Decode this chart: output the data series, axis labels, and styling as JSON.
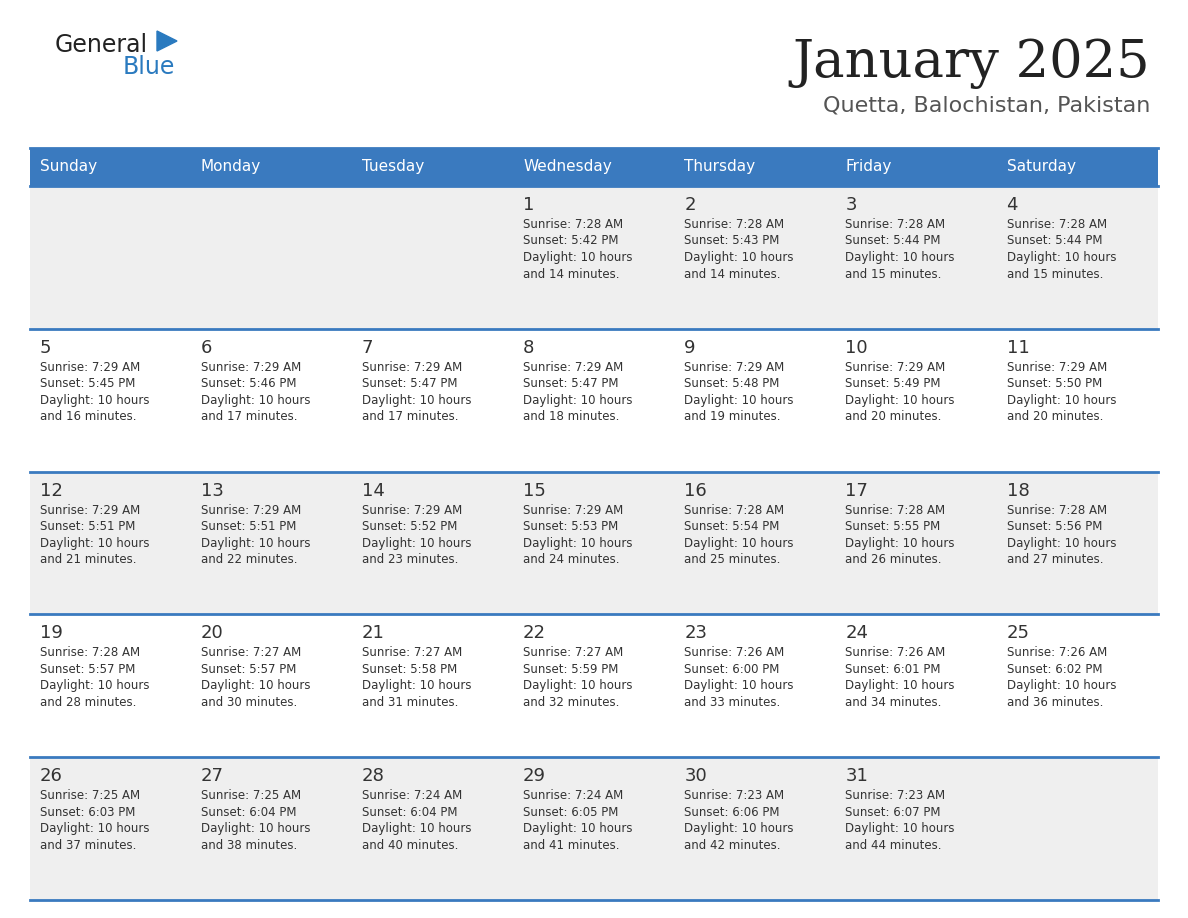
{
  "title": "January 2025",
  "subtitle": "Quetta, Balochistan, Pakistan",
  "days_of_week": [
    "Sunday",
    "Monday",
    "Tuesday",
    "Wednesday",
    "Thursday",
    "Friday",
    "Saturday"
  ],
  "header_bg": "#3a7abf",
  "header_text": "#ffffff",
  "row_bg_odd": "#efefef",
  "row_bg_even": "#ffffff",
  "cell_border": "#3a7abf",
  "title_color": "#222222",
  "subtitle_color": "#555555",
  "day_num_color": "#333333",
  "cell_text_color": "#333333",
  "logo_general_color": "#222222",
  "logo_blue_color": "#2a7abf",
  "fig_width": 11.88,
  "fig_height": 9.18,
  "dpi": 100,
  "calendar_data": [
    [
      null,
      null,
      null,
      {
        "day": 1,
        "sunrise": "7:28 AM",
        "sunset": "5:42 PM",
        "daylight": "10 hours and 14 minutes."
      },
      {
        "day": 2,
        "sunrise": "7:28 AM",
        "sunset": "5:43 PM",
        "daylight": "10 hours and 14 minutes."
      },
      {
        "day": 3,
        "sunrise": "7:28 AM",
        "sunset": "5:44 PM",
        "daylight": "10 hours and 15 minutes."
      },
      {
        "day": 4,
        "sunrise": "7:28 AM",
        "sunset": "5:44 PM",
        "daylight": "10 hours and 15 minutes."
      }
    ],
    [
      {
        "day": 5,
        "sunrise": "7:29 AM",
        "sunset": "5:45 PM",
        "daylight": "10 hours and 16 minutes."
      },
      {
        "day": 6,
        "sunrise": "7:29 AM",
        "sunset": "5:46 PM",
        "daylight": "10 hours and 17 minutes."
      },
      {
        "day": 7,
        "sunrise": "7:29 AM",
        "sunset": "5:47 PM",
        "daylight": "10 hours and 17 minutes."
      },
      {
        "day": 8,
        "sunrise": "7:29 AM",
        "sunset": "5:47 PM",
        "daylight": "10 hours and 18 minutes."
      },
      {
        "day": 9,
        "sunrise": "7:29 AM",
        "sunset": "5:48 PM",
        "daylight": "10 hours and 19 minutes."
      },
      {
        "day": 10,
        "sunrise": "7:29 AM",
        "sunset": "5:49 PM",
        "daylight": "10 hours and 20 minutes."
      },
      {
        "day": 11,
        "sunrise": "7:29 AM",
        "sunset": "5:50 PM",
        "daylight": "10 hours and 20 minutes."
      }
    ],
    [
      {
        "day": 12,
        "sunrise": "7:29 AM",
        "sunset": "5:51 PM",
        "daylight": "10 hours and 21 minutes."
      },
      {
        "day": 13,
        "sunrise": "7:29 AM",
        "sunset": "5:51 PM",
        "daylight": "10 hours and 22 minutes."
      },
      {
        "day": 14,
        "sunrise": "7:29 AM",
        "sunset": "5:52 PM",
        "daylight": "10 hours and 23 minutes."
      },
      {
        "day": 15,
        "sunrise": "7:29 AM",
        "sunset": "5:53 PM",
        "daylight": "10 hours and 24 minutes."
      },
      {
        "day": 16,
        "sunrise": "7:28 AM",
        "sunset": "5:54 PM",
        "daylight": "10 hours and 25 minutes."
      },
      {
        "day": 17,
        "sunrise": "7:28 AM",
        "sunset": "5:55 PM",
        "daylight": "10 hours and 26 minutes."
      },
      {
        "day": 18,
        "sunrise": "7:28 AM",
        "sunset": "5:56 PM",
        "daylight": "10 hours and 27 minutes."
      }
    ],
    [
      {
        "day": 19,
        "sunrise": "7:28 AM",
        "sunset": "5:57 PM",
        "daylight": "10 hours and 28 minutes."
      },
      {
        "day": 20,
        "sunrise": "7:27 AM",
        "sunset": "5:57 PM",
        "daylight": "10 hours and 30 minutes."
      },
      {
        "day": 21,
        "sunrise": "7:27 AM",
        "sunset": "5:58 PM",
        "daylight": "10 hours and 31 minutes."
      },
      {
        "day": 22,
        "sunrise": "7:27 AM",
        "sunset": "5:59 PM",
        "daylight": "10 hours and 32 minutes."
      },
      {
        "day": 23,
        "sunrise": "7:26 AM",
        "sunset": "6:00 PM",
        "daylight": "10 hours and 33 minutes."
      },
      {
        "day": 24,
        "sunrise": "7:26 AM",
        "sunset": "6:01 PM",
        "daylight": "10 hours and 34 minutes."
      },
      {
        "day": 25,
        "sunrise": "7:26 AM",
        "sunset": "6:02 PM",
        "daylight": "10 hours and 36 minutes."
      }
    ],
    [
      {
        "day": 26,
        "sunrise": "7:25 AM",
        "sunset": "6:03 PM",
        "daylight": "10 hours and 37 minutes."
      },
      {
        "day": 27,
        "sunrise": "7:25 AM",
        "sunset": "6:04 PM",
        "daylight": "10 hours and 38 minutes."
      },
      {
        "day": 28,
        "sunrise": "7:24 AM",
        "sunset": "6:04 PM",
        "daylight": "10 hours and 40 minutes."
      },
      {
        "day": 29,
        "sunrise": "7:24 AM",
        "sunset": "6:05 PM",
        "daylight": "10 hours and 41 minutes."
      },
      {
        "day": 30,
        "sunrise": "7:23 AM",
        "sunset": "6:06 PM",
        "daylight": "10 hours and 42 minutes."
      },
      {
        "day": 31,
        "sunrise": "7:23 AM",
        "sunset": "6:07 PM",
        "daylight": "10 hours and 44 minutes."
      },
      null
    ]
  ]
}
